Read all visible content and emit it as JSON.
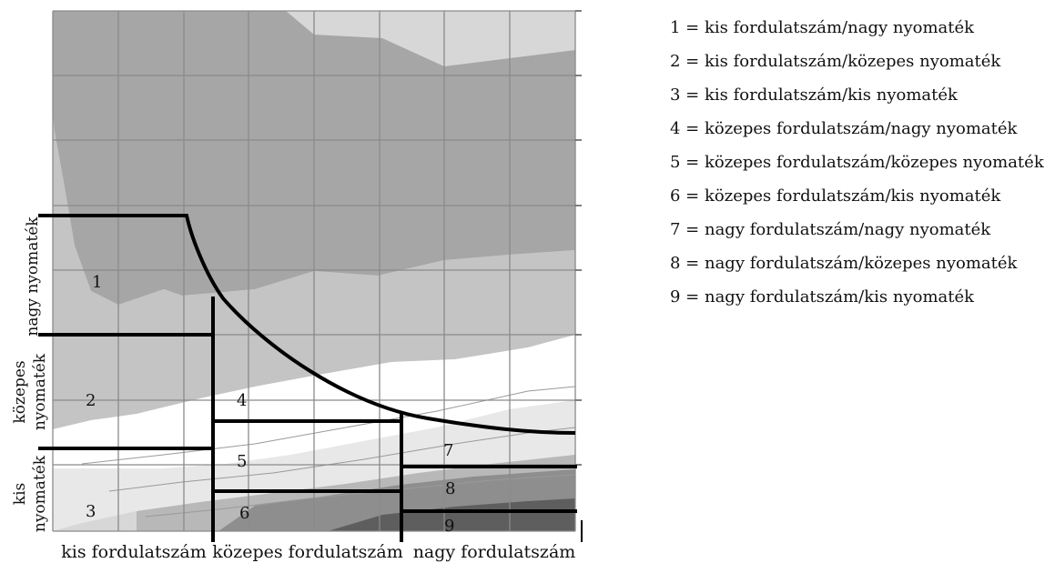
{
  "diagram": {
    "x_axis_labels": [
      "kis fordulatszám",
      "közepes fordulatszám",
      "nagy fordulatszám"
    ],
    "y_axis_labels": [
      {
        "lines": [
          "nagy nyomaték"
        ]
      },
      {
        "lines": [
          "közepes",
          "nyomaték"
        ]
      },
      {
        "lines": [
          "kis",
          "nyomaték"
        ]
      }
    ],
    "zone_numbers": [
      "1",
      "2",
      "3",
      "4",
      "5",
      "6",
      "7",
      "8",
      "9"
    ],
    "colors": {
      "band_dark": "#a6a6a6",
      "band_mid": "#c4c4c4",
      "band_light": "#d7d7d7",
      "band_white": "#ffffff",
      "band_deepest": "#5e5e5e",
      "grid": "#8a8a8a",
      "boundary": "#000000"
    }
  },
  "legend": [
    {
      "text": "1 = kis fordulatszám/nagy nyomaték"
    },
    {
      "text": "2 = kis fordulatszám/közepes nyomaték"
    },
    {
      "text": "3 = kis fordulatszám/kis nyomaték"
    },
    {
      "text": "4 = közepes fordulatszám/nagy nyomaték"
    },
    {
      "text": "5 = közepes fordulatszám/közepes nyomaték"
    },
    {
      "text": "6 = közepes fordulatszám/kis nyomaték"
    },
    {
      "text": "7 = nagy fordulatszám/nagy nyomaték"
    },
    {
      "text": "8 = nagy fordulatszám/közepes nyomaték"
    },
    {
      "text": "9 = nagy fordulatszám/kis nyomaték"
    }
  ]
}
